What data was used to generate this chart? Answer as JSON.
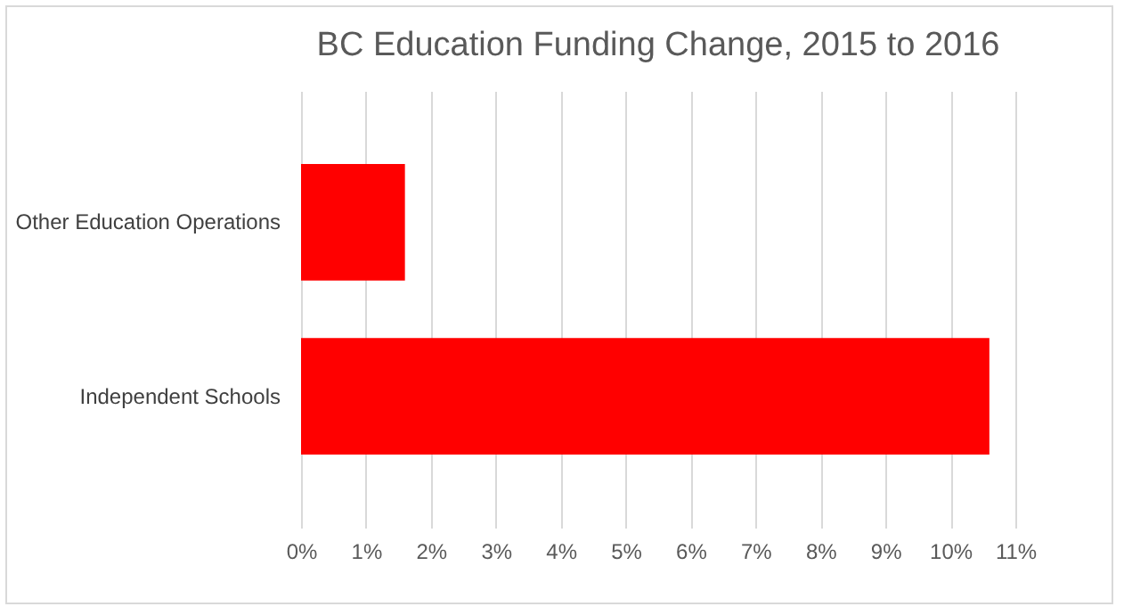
{
  "chart_data": {
    "type": "bar",
    "orientation": "horizontal",
    "title": "BC Education Funding Change, 2015 to 2016",
    "categories": [
      "Other Education Operations",
      "Independent Schools"
    ],
    "values": [
      1.6,
      10.6
    ],
    "color": "#ff0000",
    "xlim": [
      0,
      11
    ],
    "xticks": [
      {
        "value": 0,
        "label": "0%"
      },
      {
        "value": 1,
        "label": "1%"
      },
      {
        "value": 2,
        "label": "2%"
      },
      {
        "value": 3,
        "label": "3%"
      },
      {
        "value": 4,
        "label": "4%"
      },
      {
        "value": 5,
        "label": "5%"
      },
      {
        "value": 6,
        "label": "6%"
      },
      {
        "value": 7,
        "label": "7%"
      },
      {
        "value": 8,
        "label": "8%"
      },
      {
        "value": 9,
        "label": "9%"
      },
      {
        "value": 10,
        "label": "10%"
      },
      {
        "value": 11,
        "label": "11%"
      }
    ],
    "grid": "x"
  }
}
